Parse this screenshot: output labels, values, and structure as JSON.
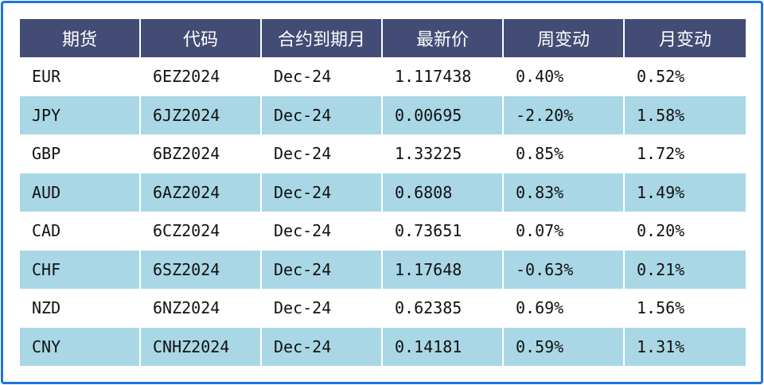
{
  "colors": {
    "header_bg": "#434c74",
    "stripe_bg": "#a9d7e5",
    "border": "#1e74e0",
    "positive": "#e8141c",
    "negative": "#1c8a2a"
  },
  "table": {
    "headers": [
      "期货",
      "代码",
      "合约到期月",
      "最新价",
      "周变动",
      "月变动"
    ],
    "rows": [
      {
        "currency": "EUR",
        "code": "6EZ2024",
        "expiry": "Dec-24",
        "price": "1.117438",
        "weekly": "0.40%",
        "monthly": "0.52%"
      },
      {
        "currency": "JPY",
        "code": "6JZ2024",
        "expiry": "Dec-24",
        "price": "0.00695",
        "weekly": "-2.20%",
        "monthly": "1.58%"
      },
      {
        "currency": "GBP",
        "code": "6BZ2024",
        "expiry": "Dec-24",
        "price": "1.33225",
        "weekly": "0.85%",
        "monthly": "1.72%"
      },
      {
        "currency": "AUD",
        "code": "6AZ2024",
        "expiry": "Dec-24",
        "price": "0.6808",
        "weekly": "0.83%",
        "monthly": "1.49%"
      },
      {
        "currency": "CAD",
        "code": "6CZ2024",
        "expiry": "Dec-24",
        "price": "0.73651",
        "weekly": "0.07%",
        "monthly": "0.20%"
      },
      {
        "currency": "CHF",
        "code": "6SZ2024",
        "expiry": "Dec-24",
        "price": "1.17648",
        "weekly": "-0.63%",
        "monthly": "0.21%"
      },
      {
        "currency": "NZD",
        "code": "6NZ2024",
        "expiry": "Dec-24",
        "price": "0.62385",
        "weekly": "0.69%",
        "monthly": "1.56%"
      },
      {
        "currency": "CNY",
        "code": "CNHZ2024",
        "expiry": "Dec-24",
        "price": "0.14181",
        "weekly": "0.59%",
        "monthly": "1.31%"
      }
    ]
  }
}
